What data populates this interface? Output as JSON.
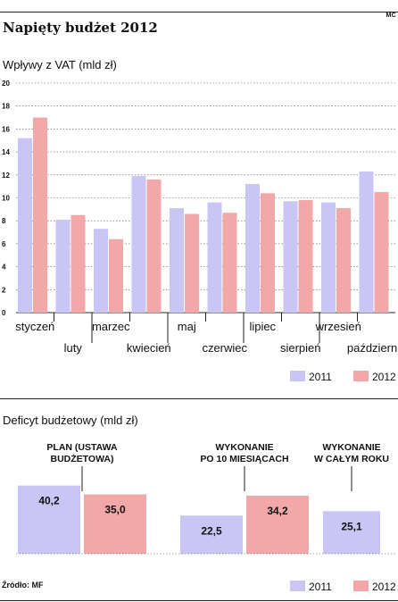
{
  "header": {
    "title": "Napięty budżet 2012",
    "corner_mark": "MC"
  },
  "colors": {
    "series_2011": "#c9c6f5",
    "series_2012": "#f2a7a8",
    "grid": "#555555"
  },
  "legend": {
    "label_2011": "2011",
    "label_2012": "2012"
  },
  "source": "Źródło: MF",
  "chart_data": [
    {
      "type": "bar",
      "title": "Wpływy z VAT (mld zł)",
      "categories": [
        "styczeń",
        "luty",
        "marzec",
        "kwiecień",
        "maj",
        "czerwiec",
        "lipiec",
        "sierpień",
        "wrzesień",
        "październik"
      ],
      "series": [
        {
          "name": "2011",
          "values": [
            15.2,
            8.1,
            7.3,
            11.9,
            9.1,
            9.6,
            11.2,
            9.7,
            9.6,
            12.3
          ]
        },
        {
          "name": "2012",
          "values": [
            17.0,
            8.5,
            6.4,
            11.6,
            8.6,
            8.7,
            10.4,
            9.8,
            9.1,
            10.5
          ]
        }
      ],
      "ylim": [
        0,
        20
      ],
      "yticks": [
        0,
        2,
        4,
        6,
        8,
        10,
        12,
        14,
        16,
        18,
        20
      ],
      "grid": true,
      "legend": "bottom-right"
    },
    {
      "type": "bar",
      "title": "Deficyt budżetowy (mld zł)",
      "groups": [
        {
          "label": "PLAN (USTAWA BUDŻETOWA)",
          "lines": [
            "PLAN (USTAWA",
            "BUDŻETOWA)"
          ],
          "bars": [
            {
              "series": "2011",
              "value": 40.2,
              "label": "40,2"
            },
            {
              "series": "2012",
              "value": 35.0,
              "label": "35,0"
            }
          ]
        },
        {
          "label": "WYKONANIE PO 10 MIESIĄCACH",
          "lines": [
            "WYKONANIE",
            "PO 10 MIESIĄCACH"
          ],
          "bars": [
            {
              "series": "2011",
              "value": 22.5,
              "label": "22,5"
            },
            {
              "series": "2012",
              "value": 34.2,
              "label": "34,2"
            }
          ]
        },
        {
          "label": "WYKONANIE W CAŁYM ROKU",
          "lines": [
            "WYKONANIE",
            "W CAŁYM ROKU"
          ],
          "bars": [
            {
              "series": "2011",
              "value": 25.1,
              "label": "25,1"
            }
          ]
        }
      ],
      "legend": "bottom-right"
    }
  ]
}
